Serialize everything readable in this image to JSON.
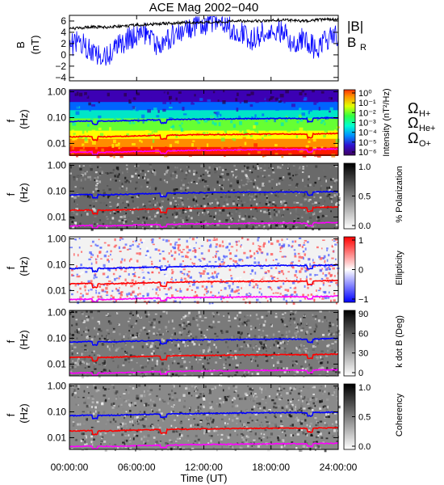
{
  "title": "ACE Mag 2002−040",
  "colors": {
    "B": "#000000",
    "B_R": "#0000ff",
    "H": "#0000ff",
    "He": "#ff0000",
    "O": "#ff00ff"
  },
  "legend_top": {
    "B": "|B|",
    "B_R_main": "B",
    "B_R_sub": "R"
  },
  "gyro_labels": {
    "H": {
      "main": "Ω",
      "sub": "H+"
    },
    "He": {
      "main": "Ω",
      "sub": "He+"
    },
    "O": {
      "main": "Ω",
      "sub": "O+"
    }
  },
  "chart_data": [
    {
      "type": "line",
      "title": "ACE Mag 2002−040",
      "xlabel": "Time (UT)",
      "ylabel": "B (nT)",
      "ylabel_main": "B",
      "ylabel_unit": "(nT)",
      "xlim": [
        0,
        24
      ],
      "ylim": [
        -4.6,
        7
      ],
      "x_ticks": [
        0,
        6,
        12,
        18,
        24
      ],
      "y_ticks": [
        -4,
        -2,
        0,
        2,
        4,
        6
      ],
      "y_tick_labels": [
        "−4",
        "−2",
        "0",
        "2",
        "4",
        "6"
      ],
      "series": [
        {
          "name": "|B|",
          "x": [
            0,
            1,
            2,
            3,
            4,
            5,
            6,
            7,
            8,
            9,
            10,
            11,
            12,
            13,
            14,
            15,
            16,
            17,
            18,
            19,
            20,
            21,
            22,
            23,
            24
          ],
          "values": [
            4.6,
            4.8,
            5.0,
            4.9,
            5.0,
            5.1,
            5.3,
            5.4,
            5.5,
            5.6,
            5.7,
            5.7,
            5.8,
            5.8,
            5.9,
            6.0,
            6.0,
            6.0,
            6.1,
            6.2,
            6.1,
            6.0,
            6.2,
            6.3,
            6.3
          ]
        },
        {
          "name": "B_R",
          "x": [
            0,
            1,
            2,
            3,
            4,
            5,
            6,
            7,
            8,
            9,
            10,
            11,
            12,
            13,
            14,
            15,
            16,
            17,
            18,
            19,
            20,
            21,
            22,
            23,
            24
          ],
          "values": [
            1.5,
            2.5,
            0.5,
            -1.0,
            1.0,
            2.5,
            3.5,
            4.0,
            1.0,
            3.0,
            4.5,
            5.0,
            5.5,
            5.8,
            5.0,
            4.5,
            2.5,
            3.5,
            5.0,
            4.0,
            2.0,
            3.0,
            1.0,
            2.5,
            3.5
          ]
        }
      ]
    },
    {
      "type": "heatmap",
      "quantity": "Intensity",
      "ylabel": "f (Hz)",
      "colorbar_label": "Intensity (nT²/Hz)",
      "colorbar_tick_labels": [
        "10⁰",
        "10⁻¹",
        "10⁻²",
        "10⁻³",
        "10⁻⁴",
        "10⁻⁵",
        "10⁻⁶"
      ],
      "ylim": [
        0.0035,
        1.2
      ],
      "y_ticks": [
        1.0,
        0.1,
        0.01
      ],
      "y_tick_labels": [
        "1.00",
        "0.10",
        "0.01"
      ],
      "log_y": true
    },
    {
      "type": "heatmap",
      "quantity": "% Polarization",
      "ylabel": "f (Hz)",
      "colorbar_label": "% Polarization",
      "colorbar_tick_labels": [
        "1.0",
        "0.5",
        "0.0"
      ],
      "ylim": [
        0.0035,
        1.2
      ],
      "y_ticks": [
        1.0,
        0.1,
        0.01
      ],
      "y_tick_labels": [
        "1.00",
        "0.10",
        "0.01"
      ],
      "log_y": true
    },
    {
      "type": "heatmap",
      "quantity": "Ellipticity",
      "ylabel": "f (Hz)",
      "colorbar_label": "Ellipticity",
      "colorbar_tick_labels": [
        "1",
        "0",
        "−1"
      ],
      "ylim": [
        0.0035,
        1.2
      ],
      "y_ticks": [
        1.0,
        0.1,
        0.01
      ],
      "y_tick_labels": [
        "1.00",
        "0.10",
        "0.01"
      ],
      "log_y": true
    },
    {
      "type": "heatmap",
      "quantity": "k dot B",
      "ylabel": "f (Hz)",
      "colorbar_label": "k dot B (Deg)",
      "colorbar_tick_labels": [
        "90",
        "60",
        "30",
        "0"
      ],
      "ylim": [
        0.0035,
        1.2
      ],
      "y_ticks": [
        1.0,
        0.1,
        0.01
      ],
      "y_tick_labels": [
        "1.00",
        "0.10",
        "0.01"
      ],
      "log_y": true
    },
    {
      "type": "heatmap",
      "quantity": "Coherency",
      "ylabel": "f (Hz)",
      "xlabel": "Time (UT)",
      "colorbar_label": "Coherency",
      "colorbar_tick_labels": [
        "1.0",
        "0.5",
        "0.0"
      ],
      "ylim": [
        0.0035,
        1.2
      ],
      "y_ticks": [
        1.0,
        0.1,
        0.01
      ],
      "y_tick_labels": [
        "1.00",
        "0.10",
        "0.01"
      ],
      "log_y": true,
      "x_ticks": [
        0,
        6,
        12,
        18,
        24
      ],
      "x_tick_labels": [
        "00:00:00",
        "06:00:00",
        "12:00:00",
        "18:00:00",
        "24:00:00"
      ]
    }
  ],
  "gyrofrequency_lines": {
    "x": [
      0,
      1,
      2,
      3,
      4,
      5,
      6,
      7,
      8,
      9,
      10,
      11,
      12,
      13,
      14,
      15,
      16,
      17,
      18,
      19,
      20,
      21,
      22,
      23,
      24
    ],
    "H": [
      0.07,
      0.073,
      0.075,
      0.072,
      0.074,
      0.076,
      0.078,
      0.08,
      0.082,
      0.084,
      0.085,
      0.086,
      0.087,
      0.088,
      0.089,
      0.09,
      0.091,
      0.091,
      0.092,
      0.093,
      0.093,
      0.092,
      0.094,
      0.096,
      0.097
    ],
    "He": [
      0.018,
      0.0183,
      0.0188,
      0.018,
      0.0185,
      0.019,
      0.0195,
      0.02,
      0.0205,
      0.021,
      0.0212,
      0.0215,
      0.0218,
      0.022,
      0.0222,
      0.0225,
      0.0228,
      0.0228,
      0.023,
      0.0232,
      0.0232,
      0.023,
      0.0235,
      0.024,
      0.0243
    ],
    "O": [
      0.0045,
      0.0046,
      0.0047,
      0.0045,
      0.0046,
      0.0047,
      0.0049,
      0.005,
      0.0051,
      0.0052,
      0.0053,
      0.0054,
      0.0054,
      0.0055,
      0.0055,
      0.0056,
      0.0057,
      0.0057,
      0.0058,
      0.0058,
      0.0058,
      0.0057,
      0.0059,
      0.006,
      0.0061
    ],
    "dips": [
      2.3,
      8.4,
      21.5
    ]
  }
}
